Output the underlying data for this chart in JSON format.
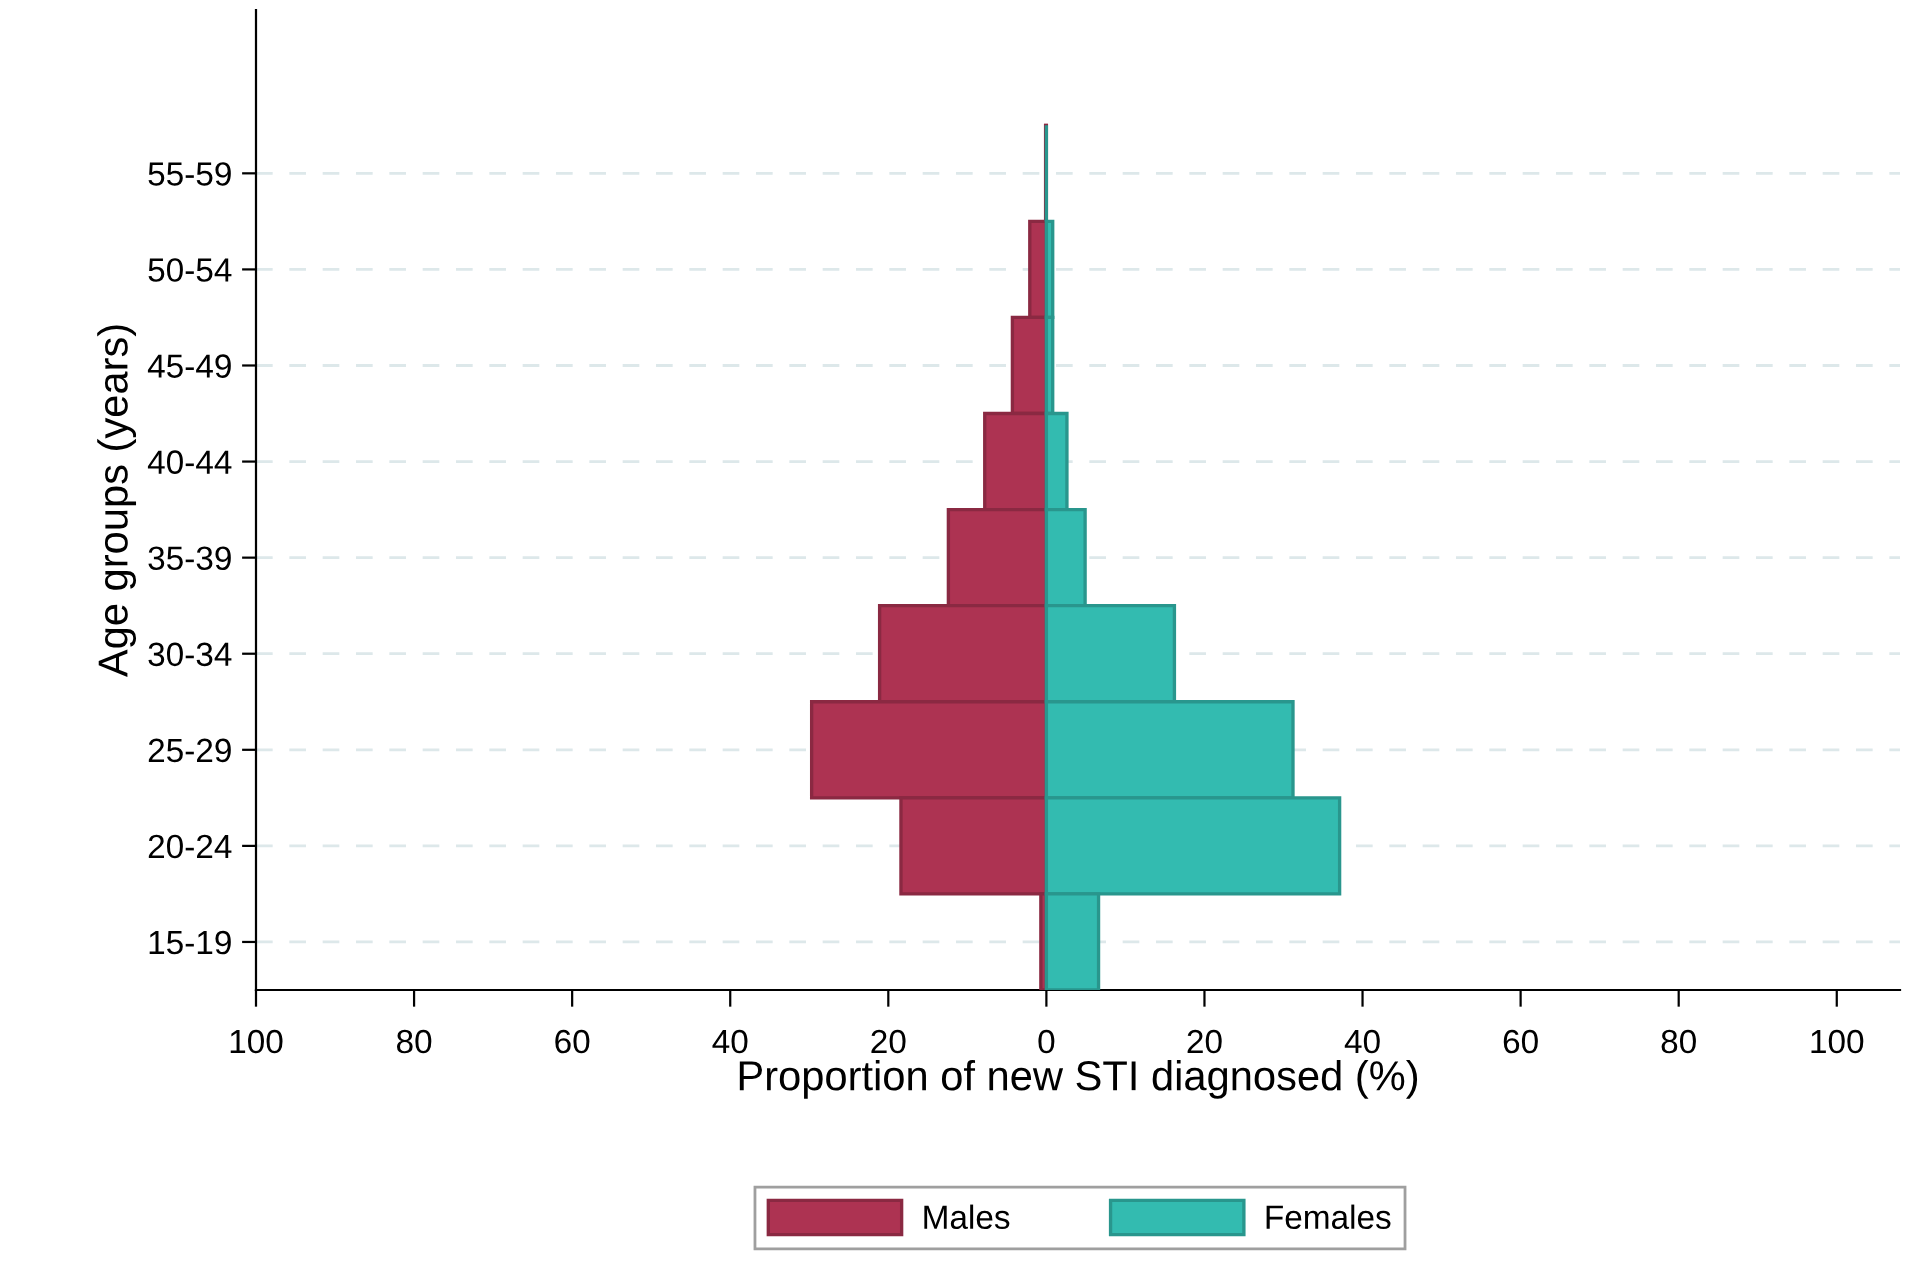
{
  "chart_data": {
    "type": "bar",
    "orientation": "horizontal",
    "stacked": true,
    "categories": [
      "55-59",
      "50-54",
      "45-49",
      "40-44",
      "35-39",
      "30-34",
      "25-29",
      "20-24",
      "15-19"
    ],
    "series": [
      {
        "name": "Males",
        "color": "#ad3352",
        "values": [
          -0.1,
          -2.1,
          -4.3,
          -7.8,
          -12.4,
          -21.1,
          -29.7,
          -18.4,
          -0.7
        ]
      },
      {
        "name": "Females",
        "color": "#33bbb0",
        "values": [
          0,
          0.8,
          0.8,
          2.6,
          4.9,
          16.2,
          31.2,
          37.1,
          6.6
        ]
      }
    ],
    "xlabel": "Proportion of new STI diagnosed (%)",
    "ylabel": "Age groups (years)",
    "xlim": [
      -100,
      108
    ],
    "xticks": [
      {
        "value": -100,
        "label": "100"
      },
      {
        "value": -80,
        "label": "80"
      },
      {
        "value": -60,
        "label": "60"
      },
      {
        "value": -40,
        "label": "40"
      },
      {
        "value": -20,
        "label": "20"
      },
      0,
      20,
      40,
      60,
      80,
      100
    ],
    "grid": "y",
    "legend": "bottom"
  }
}
